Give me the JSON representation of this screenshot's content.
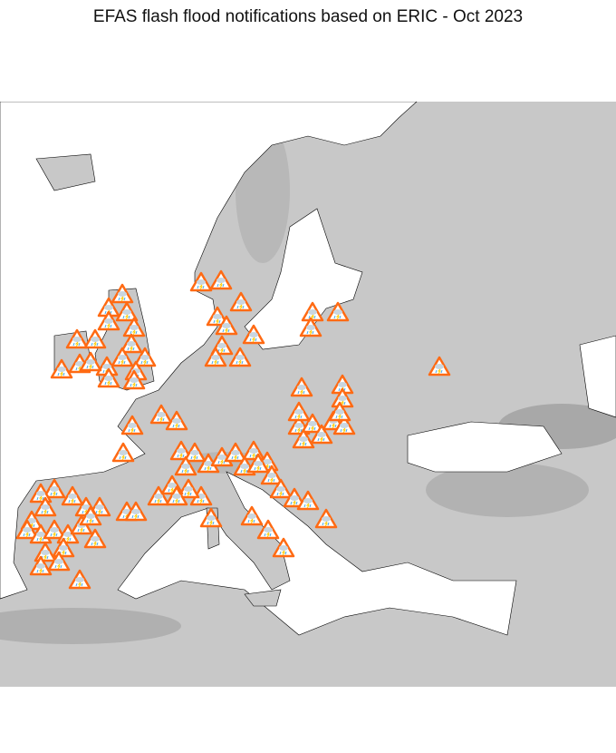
{
  "title": "EFAS flash flood notifications based on ERIC - Oct 2023",
  "map": {
    "land_color": "#c8c8c8",
    "sea_color": "#ffffff",
    "border_color": "#000000",
    "marker": {
      "icon": "flash-flood-warning-triangle-icon",
      "outline_color": "#ff6a13",
      "fill_color": "#ffffff",
      "cloud_color": "#c9d6e0",
      "rain_color": "#3fa9f5",
      "lightning_color": "#ffcc00"
    }
  }
}
